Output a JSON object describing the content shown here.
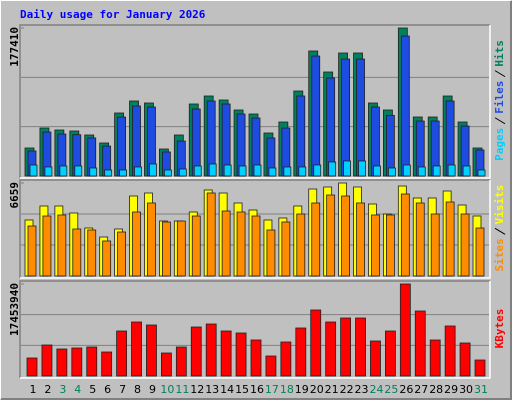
{
  "chart_data": [
    {
      "type": "bar",
      "title": "Daily usage for January 2026",
      "title_color": "#0000ff",
      "categories": [
        "1",
        "2",
        "3",
        "4",
        "5",
        "6",
        "7",
        "8",
        "9",
        "10",
        "11",
        "12",
        "13",
        "14",
        "15",
        "16",
        "17",
        "18",
        "19",
        "20",
        "21",
        "22",
        "23",
        "24",
        "25",
        "26",
        "27",
        "28",
        "29",
        "30",
        "31"
      ],
      "category_colors": [
        "#000000",
        "#000000",
        "#00805c",
        "#00805c",
        "#000000",
        "#000000",
        "#000000",
        "#000000",
        "#000000",
        "#00805c",
        "#00805c",
        "#000000",
        "#000000",
        "#000000",
        "#000000",
        "#000000",
        "#00805c",
        "#00805c",
        "#000000",
        "#000000",
        "#000000",
        "#000000",
        "#000000",
        "#00805c",
        "#00805c",
        "#000000",
        "#000000",
        "#000000",
        "#000000",
        "#000000",
        "#00805c"
      ],
      "ylim": [
        0,
        177410
      ],
      "yticks": [
        177410
      ],
      "grid": true,
      "series": [
        {
          "name": "Hits",
          "color": "#00805c",
          "values": [
            33570,
            57540,
            55140,
            53940,
            49150,
            39560,
            75520,
            89900,
            87510,
            32370,
            49150,
            86310,
            95900,
            91100,
            79120,
            74320,
            51540,
            64730,
            101890,
            149840,
            124670,
            147440,
            147440,
            87510,
            79120,
            177410,
            70720,
            70720,
            95900,
            64730,
            33570
          ]
        },
        {
          "name": "Files",
          "color": "#1e4be0",
          "values": [
            29970,
            52700,
            50300,
            49500,
            45600,
            35900,
            70700,
            83900,
            82700,
            28800,
            41900,
            80300,
            89900,
            86300,
            74300,
            69500,
            45600,
            57500,
            95900,
            143800,
            117500,
            140200,
            140200,
            82700,
            72700,
            167800,
            65900,
            65900,
            89900,
            59900,
            31200
          ]
        },
        {
          "name": "Pages",
          "color": "#00d0ff",
          "values": [
            13200,
            10800,
            12000,
            12000,
            9600,
            7200,
            7200,
            10800,
            14400,
            7200,
            8400,
            12000,
            14400,
            13200,
            12000,
            13200,
            9600,
            10800,
            10800,
            13200,
            16800,
            18000,
            18000,
            12000,
            9600,
            13200,
            10800,
            12000,
            13200,
            12000,
            7200
          ]
        }
      ]
    },
    {
      "type": "bar",
      "ylim": [
        0,
        6659
      ],
      "yticks": [
        6659
      ],
      "grid": true,
      "series": [
        {
          "name": "Visits",
          "color": "#ffff00",
          "values": [
            4010,
            5012,
            5012,
            4511,
            3437,
            2792,
            3365,
            5728,
            5943,
            3938,
            3938,
            4582,
            6158,
            5943,
            5227,
            4726,
            4010,
            4153,
            5012,
            6229,
            6372,
            6659,
            6372,
            5155,
            4439,
            6444,
            5585,
            5585,
            6086,
            5084,
            4296
          ]
        },
        {
          "name": "Sites",
          "color": "#ff8c00",
          "values": [
            3580,
            4296,
            4368,
            3365,
            3294,
            2506,
            3150,
            4582,
            5227,
            3866,
            3938,
            4296,
            5943,
            4654,
            4582,
            4296,
            3294,
            3866,
            4439,
            5227,
            5800,
            5728,
            5227,
            4368,
            4368,
            5871,
            5227,
            4439,
            5298,
            4439,
            3437
          ]
        }
      ]
    },
    {
      "type": "bar",
      "ylim": [
        0,
        17453940
      ],
      "yticks": [
        17453940
      ],
      "grid": true,
      "series": [
        {
          "name": "KBytes",
          "color": "#ff0000",
          "values": [
            3414900,
            5881200,
            5122400,
            5312100,
            5501800,
            4553200,
            8537300,
            10244700,
            9675600,
            4363500,
            5501800,
            9296100,
            9865300,
            8537300,
            8157800,
            6829800,
            3794300,
            6450400,
            9106400,
            12521300,
            10244700,
            11003600,
            11003600,
            6640100,
            8537300,
            17453940,
            12331600,
            6829800,
            9485900,
            6260700,
            3035500
          ]
        }
      ]
    }
  ]
}
